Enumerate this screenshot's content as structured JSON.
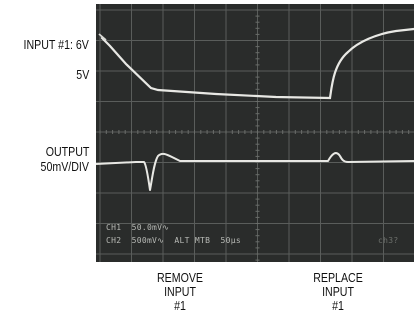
{
  "left_labels": {
    "input_top": "INPUT #1: 6V",
    "input_bottom": "5V",
    "output_line1": "OUTPUT",
    "output_line2": "50mV/DIV"
  },
  "bottom_labels": {
    "remove": [
      "REMOVE",
      "INPUT",
      "#1"
    ],
    "replace": [
      "REPLACE",
      "INPUT",
      "#1"
    ]
  },
  "scope_readout": {
    "ch1": "CH1",
    "ch1_scale": "50.0mV∿",
    "ch2": "CH2",
    "ch2_scale": "500mV∿",
    "mode": "ALT MTB",
    "timebase": "50µs",
    "corner": "ch3?"
  },
  "colors": {
    "screen": "#2a2c2b",
    "grid": "#5a5d5b",
    "trace": "#e8e8e4",
    "text": "#111111"
  }
}
